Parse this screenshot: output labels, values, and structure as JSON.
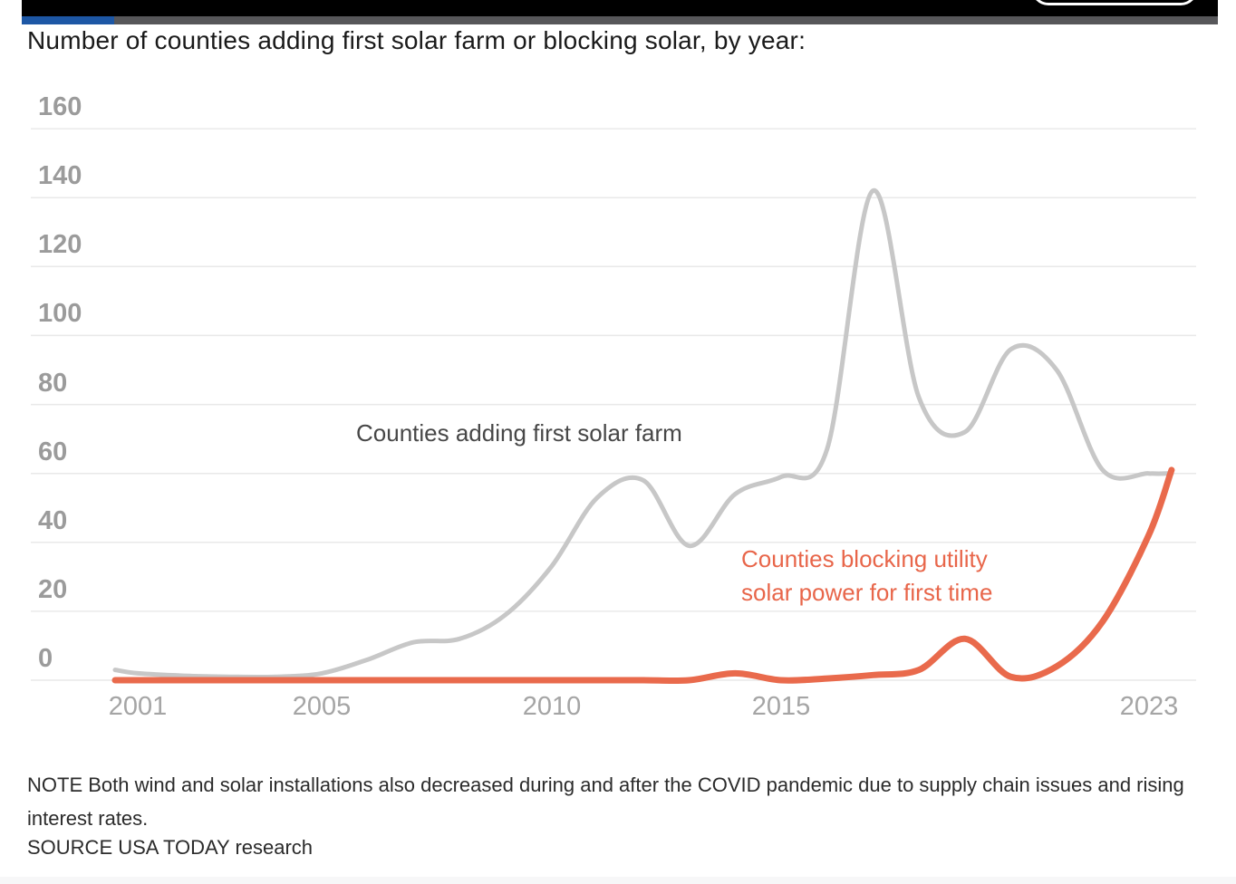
{
  "top_bar": {
    "progress_percent": 7.7
  },
  "title": "Number of counties adding first solar farm or blocking solar, by year:",
  "chart_data": {
    "type": "line",
    "title": "Number of counties adding first solar farm or blocking solar, by year:",
    "x": [
      2000.5,
      2001,
      2002,
      2003,
      2004,
      2005,
      2006,
      2007,
      2008,
      2009,
      2010,
      2011,
      2012,
      2013,
      2014,
      2015,
      2016,
      2017,
      2018,
      2019,
      2020,
      2021,
      2022,
      2023,
      2023.5
    ],
    "x_tick_years": [
      2001,
      2005,
      2010,
      2015,
      2023
    ],
    "x_tick_labels": [
      "2001",
      "2005",
      "2010",
      "2015",
      "2023"
    ],
    "y_ticks": [
      0,
      20,
      40,
      60,
      80,
      100,
      120,
      140,
      160
    ],
    "ylim": [
      0,
      160
    ],
    "xlabel": "",
    "ylabel": "",
    "grid": true,
    "legend_position": "inline-annotations",
    "grid_color": "#e9e9e9",
    "axis_label_color": "#9b9b9b",
    "series": [
      {
        "id": "adding",
        "name": "Counties adding first solar farm",
        "label_lines": [
          "Counties adding first solar farm"
        ],
        "color": "#c7c7c7",
        "stroke_width": 5,
        "values": [
          3,
          2,
          1.3,
          1,
          1,
          2,
          6,
          11,
          12,
          19,
          33,
          53,
          58,
          39,
          54,
          59,
          67,
          142,
          82,
          72,
          96,
          90,
          61,
          60,
          60
        ]
      },
      {
        "id": "blocking",
        "name": "Counties blocking utility solar power for first time",
        "label_lines": [
          "Counties blocking utility",
          "solar power for first time"
        ],
        "color": "#e96a4c",
        "stroke_width": 7,
        "values": [
          0,
          0,
          0,
          0,
          0,
          0,
          0,
          0,
          0,
          0,
          0,
          0,
          0,
          0,
          2,
          0,
          0.5,
          1.5,
          3,
          12,
          1,
          4,
          17,
          42,
          61
        ]
      }
    ]
  },
  "note": {
    "lines": [
      "NOTE Both wind and solar installations also decreased during and after the COVID pandemic due to supply chain",
      "issues and rising interest rates."
    ]
  },
  "source": "SOURCE USA TODAY research",
  "colors": {
    "progress_blue": "#1d57a5",
    "progress_track": "#57575a",
    "top_bar": "#000000",
    "accent_orange": "#e96a4c",
    "line_gray": "#c7c7c7"
  }
}
